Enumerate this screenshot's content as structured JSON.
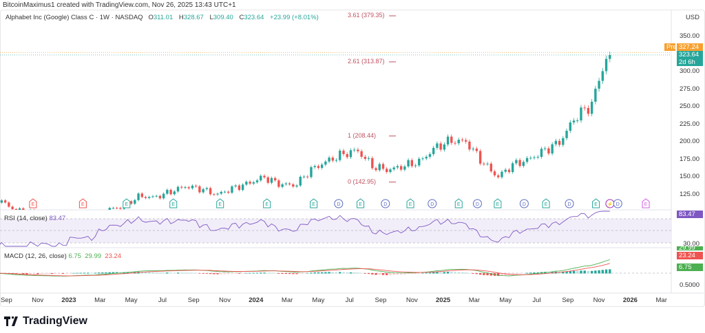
{
  "credit": "BitcoinMaximus1 created with TradingView.com, Nov 26, 2025 13:43 UTC+1",
  "symbol": {
    "name": "Alphabet Inc (Google) Class C · 1W · NASDAQ",
    "o_label": "O",
    "o": "311.01",
    "h_label": "H",
    "h": "328.67",
    "l_label": "L",
    "l": "309.40",
    "c_label": "C",
    "c": "323.64",
    "change": "+23.99 (+8.01%)"
  },
  "currency": "USD",
  "price_tags": {
    "pre_label": "Pre",
    "pre": "327.24",
    "last": "323.64",
    "countdown": "2d 6h"
  },
  "rsi": {
    "label": "RSI (14, close)",
    "value": "83.47",
    "level_label": "30.00"
  },
  "macd": {
    "label": "MACD (12, 26, close)",
    "hist": "6.75",
    "macd": "29.99",
    "signal": "23.24",
    "axis_label": "0.5000"
  },
  "fib_levels": [
    {
      "label": "3.61 (379.35)",
      "price": 379.35
    },
    {
      "label": "2.61 (313.87)",
      "price": 313.87
    },
    {
      "label": "1 (208.44)",
      "price": 208.44
    },
    {
      "label": "0 (142.95)",
      "price": 142.95
    }
  ],
  "logo": "TradingView",
  "colors": {
    "up": "#26a69a",
    "down": "#ef5350",
    "rsi": "#7e57c2",
    "macd": "#2962ff",
    "pre": "#f7a02f",
    "fib": "#c0505f"
  },
  "chart_data": {
    "type": "candlestick",
    "title": "Alphabet Inc (Google) Class C · 1W · NASDAQ",
    "interval": "1W",
    "ylim": [
      100,
      372
    ],
    "y_ticks": [
      "350.00",
      "300.00",
      "275.00",
      "250.00",
      "225.00",
      "200.00",
      "175.00",
      "150.00",
      "125.00"
    ],
    "x_ticks": [
      {
        "label": "Sep",
        "m": -4
      },
      {
        "label": "Nov",
        "m": -2
      },
      {
        "label": "2023",
        "m": 0,
        "bold": true
      },
      {
        "label": "Mar",
        "m": 2
      },
      {
        "label": "May",
        "m": 4
      },
      {
        "label": "Jul",
        "m": 6
      },
      {
        "label": "Sep",
        "m": 8
      },
      {
        "label": "Nov",
        "m": 10
      },
      {
        "label": "2024",
        "m": 12,
        "bold": true
      },
      {
        "label": "Mar",
        "m": 14
      },
      {
        "label": "May",
        "m": 16
      },
      {
        "label": "Jul",
        "m": 18
      },
      {
        "label": "Sep",
        "m": 20
      },
      {
        "label": "Nov",
        "m": 22
      },
      {
        "label": "2025",
        "m": 24,
        "bold": true
      },
      {
        "label": "Mar",
        "m": 26
      },
      {
        "label": "May",
        "m": 28
      },
      {
        "label": "Jul",
        "m": 30
      },
      {
        "label": "Sep",
        "m": 32
      },
      {
        "label": "Nov",
        "m": 34
      },
      {
        "label": "2026",
        "m": 36,
        "bold": true
      },
      {
        "label": "Mar",
        "m": 38
      }
    ],
    "monthly_close": [
      [
        "2022-08",
        118
      ],
      [
        "2022-09",
        104
      ],
      [
        "2022-10",
        100
      ],
      [
        "2022-11",
        96
      ],
      [
        "2022-12",
        89
      ],
      [
        "2023-01",
        95
      ],
      [
        "2023-02",
        92
      ],
      [
        "2023-03",
        104
      ],
      [
        "2023-04",
        108
      ],
      [
        "2023-05",
        123
      ],
      [
        "2023-06",
        121
      ],
      [
        "2023-07",
        129
      ],
      [
        "2023-08",
        137
      ],
      [
        "2023-09",
        133
      ],
      [
        "2023-10",
        125
      ],
      [
        "2023-11",
        134
      ],
      [
        "2023-12",
        141
      ],
      [
        "2024-01",
        150
      ],
      [
        "2024-02",
        140
      ],
      [
        "2024-03",
        138
      ],
      [
        "2024-04",
        160
      ],
      [
        "2024-05",
        172
      ],
      [
        "2024-06",
        182
      ],
      [
        "2024-07",
        188
      ],
      [
        "2024-08",
        165
      ],
      [
        "2024-09",
        160
      ],
      [
        "2024-10",
        166
      ],
      [
        "2024-11",
        172
      ],
      [
        "2024-12",
        192
      ],
      [
        "2025-01",
        202
      ],
      [
        "2025-02",
        200
      ],
      [
        "2025-03",
        172
      ],
      [
        "2025-04",
        150
      ],
      [
        "2025-05",
        168
      ],
      [
        "2025-06",
        175
      ],
      [
        "2025-07",
        188
      ],
      [
        "2025-08",
        200
      ],
      [
        "2025-09",
        236
      ],
      [
        "2025-10",
        252
      ],
      [
        "2025-11",
        323.64
      ]
    ],
    "events": [
      {
        "type": "E",
        "m": -2.3,
        "kind": "past"
      },
      {
        "type": "E",
        "m": 0.9,
        "kind": "past"
      },
      {
        "type": "E",
        "m": 3.7,
        "kind": "up"
      },
      {
        "type": "E",
        "m": 6.7,
        "kind": "up"
      },
      {
        "type": "E",
        "m": 9.7,
        "kind": "up"
      },
      {
        "type": "E",
        "m": 12.7,
        "kind": "up"
      },
      {
        "type": "E",
        "m": 15.7,
        "kind": "up"
      },
      {
        "type": "D",
        "m": 17.3,
        "kind": "div"
      },
      {
        "type": "E",
        "m": 18.7,
        "kind": "up"
      },
      {
        "type": "D",
        "m": 20.3,
        "kind": "div"
      },
      {
        "type": "E",
        "m": 21.9,
        "kind": "up"
      },
      {
        "type": "D",
        "m": 23.3,
        "kind": "div"
      },
      {
        "type": "E",
        "m": 25.0,
        "kind": "up"
      },
      {
        "type": "D",
        "m": 26.2,
        "kind": "div"
      },
      {
        "type": "E",
        "m": 27.5,
        "kind": "up"
      },
      {
        "type": "D",
        "m": 29.2,
        "kind": "div"
      },
      {
        "type": "E",
        "m": 30.6,
        "kind": "up"
      },
      {
        "type": "D",
        "m": 32.1,
        "kind": "div"
      },
      {
        "type": "E",
        "m": 33.8,
        "kind": "up"
      },
      {
        "type": "⚡",
        "m": 34.7,
        "kind": "split"
      },
      {
        "type": "D",
        "m": 35.2,
        "kind": "div"
      },
      {
        "type": "E",
        "m": 37.0,
        "kind": "future"
      }
    ]
  }
}
